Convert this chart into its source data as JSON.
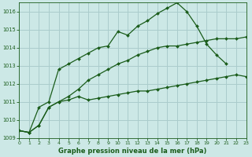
{
  "background_color": "#cce8e6",
  "grid_color": "#aacccc",
  "line_color_1": "#1a5c1a",
  "line_color_2": "#1a5c1a",
  "line_color_3": "#1a5c1a",
  "title": "Graphe pression niveau de la mer (hPa)",
  "xlim": [
    0,
    23
  ],
  "ylim": [
    1009,
    1016.5
  ],
  "yticks": [
    1009,
    1010,
    1011,
    1012,
    1013,
    1014,
    1015,
    1016
  ],
  "xticks": [
    0,
    1,
    2,
    3,
    4,
    5,
    6,
    7,
    8,
    9,
    10,
    11,
    12,
    13,
    14,
    15,
    16,
    17,
    18,
    19,
    20,
    21,
    22,
    23
  ],
  "series1_x": [
    0,
    1,
    2,
    3,
    4,
    5,
    6,
    7,
    8,
    9,
    10,
    11,
    12,
    13,
    14,
    15,
    16,
    17,
    18,
    19,
    20,
    21,
    22,
    23
  ],
  "series1_y": [
    1009.4,
    1009.3,
    1009.7,
    1010.7,
    1011.0,
    1011.3,
    1011.7,
    1012.2,
    1012.5,
    1012.8,
    1013.1,
    1013.3,
    1013.6,
    1013.8,
    1014.0,
    1014.1,
    1014.1,
    1014.2,
    1014.3,
    1014.4,
    1014.5,
    1014.5,
    1014.5,
    1014.6
  ],
  "series2_x": [
    0,
    1,
    2,
    3,
    4,
    5,
    6,
    7,
    8,
    9,
    10,
    11,
    12,
    13,
    14,
    15,
    16,
    17,
    18,
    19,
    20,
    21,
    22,
    23
  ],
  "series2_y": [
    1009.4,
    1009.3,
    1009.7,
    1010.7,
    1011.0,
    1011.1,
    1011.3,
    1011.1,
    1011.2,
    1011.3,
    1011.4,
    1011.5,
    1011.6,
    1011.6,
    1011.7,
    1011.8,
    1011.9,
    1012.0,
    1012.1,
    1012.2,
    1012.3,
    1012.4,
    1012.5,
    1012.4
  ],
  "series3_x": [
    0,
    1,
    2,
    3,
    4,
    5,
    6,
    7,
    8,
    9,
    10,
    11,
    12,
    13,
    14,
    15,
    16,
    17,
    18,
    19,
    20,
    21
  ],
  "series3_y": [
    1009.4,
    1009.3,
    1010.7,
    1011.0,
    1012.8,
    1013.1,
    1013.4,
    1013.7,
    1014.0,
    1014.1,
    1014.9,
    1014.7,
    1015.2,
    1015.5,
    1015.9,
    1016.2,
    1016.5,
    1016.0,
    1015.2,
    1014.2,
    1013.6,
    1013.1
  ]
}
